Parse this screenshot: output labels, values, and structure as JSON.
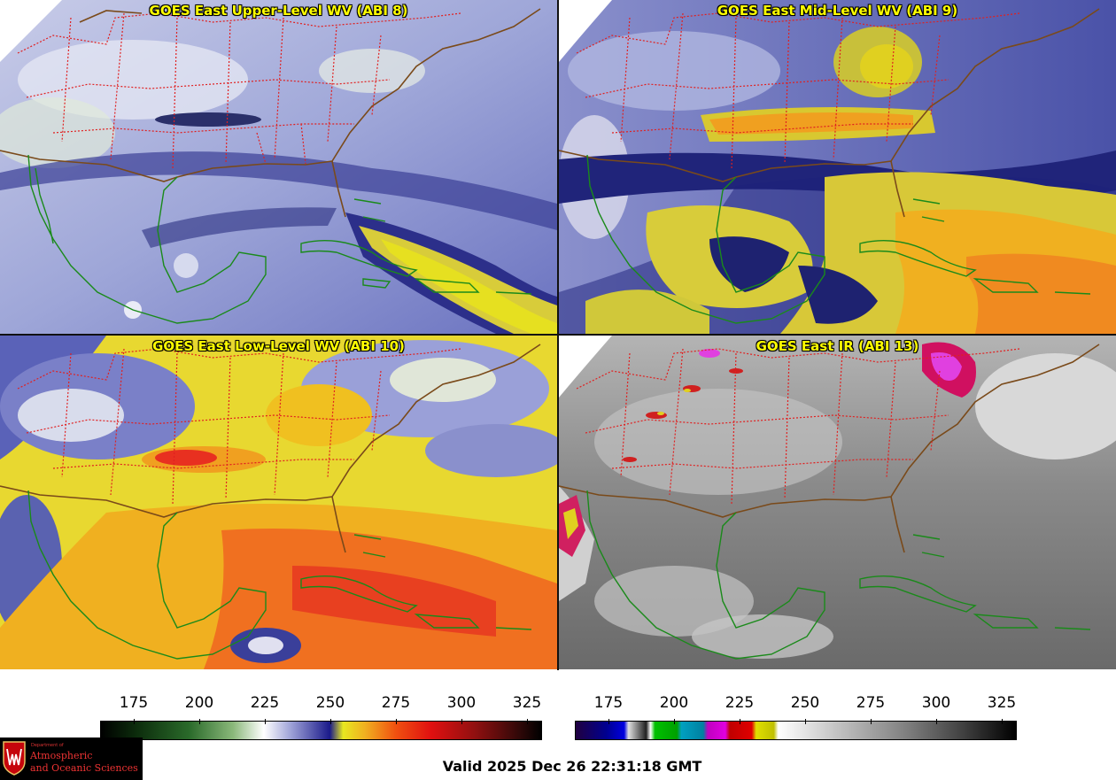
{
  "panels": [
    {
      "title": "GOES East Upper-Level WV (ABI 8)",
      "scheme": "wv_upper"
    },
    {
      "title": "GOES East Mid-Level WV (ABI 9)",
      "scheme": "wv_mid"
    },
    {
      "title": "GOES East Low-Level WV (ABI 10)",
      "scheme": "wv_low"
    },
    {
      "title": "GOES East IR (ABI 13)",
      "scheme": "ir"
    }
  ],
  "colorbars": {
    "wv": {
      "ticks": [
        "175",
        "200",
        "225",
        "250",
        "275",
        "300",
        "325"
      ]
    },
    "ir": {
      "ticks": [
        "175",
        "200",
        "225",
        "250",
        "275",
        "300",
        "325"
      ]
    }
  },
  "valid_time": "Valid 2025 Dec 26 22:31:18 GMT",
  "logo": {
    "dept": "Department of",
    "line1": "Atmospheric",
    "line2": "and Oceanic Sciences"
  },
  "colors": {
    "state_borders": "#e02020",
    "coastline_us": "#7a4a1a",
    "coastline_tropics": "#1a8a1a",
    "title_text": "#ffff00"
  }
}
